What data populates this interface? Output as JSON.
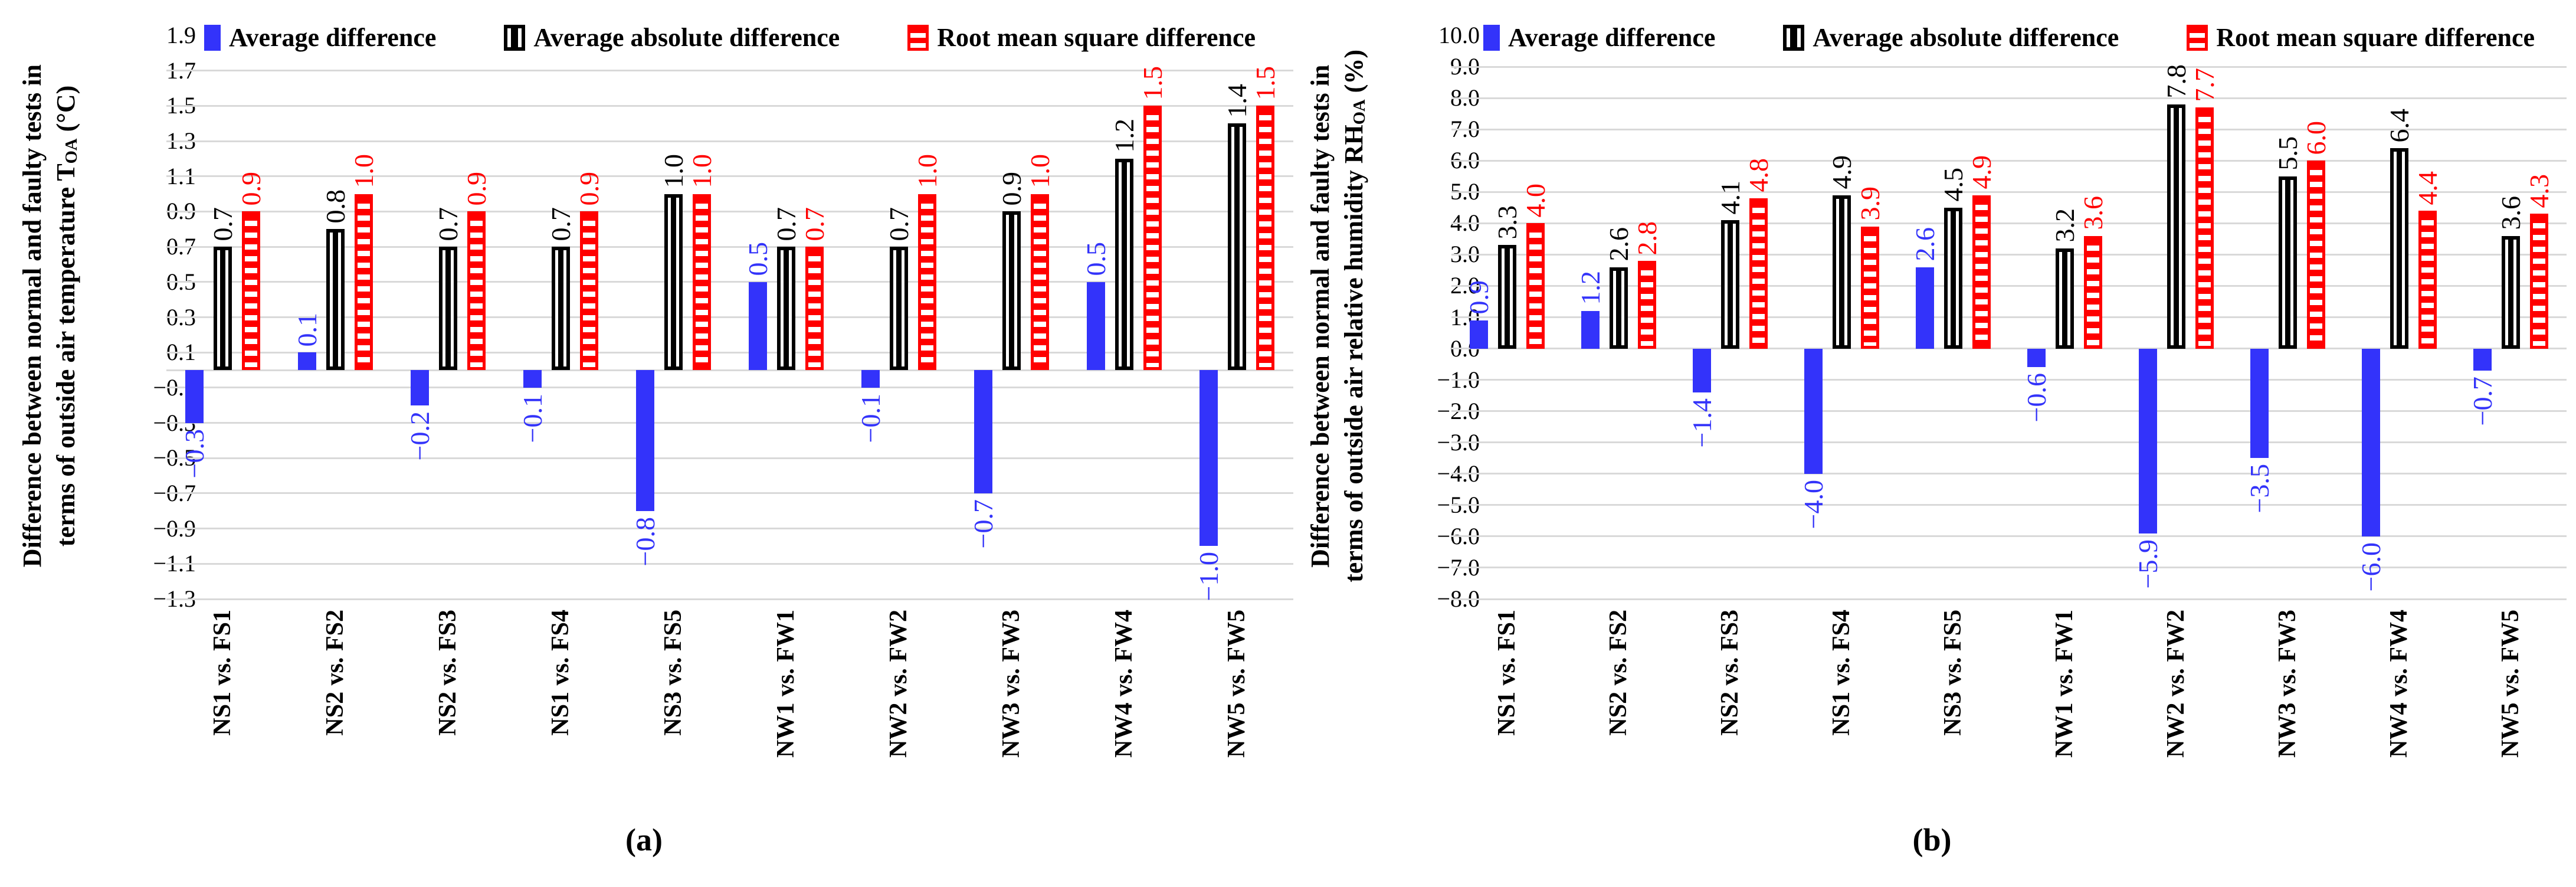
{
  "colors": {
    "average_difference": "#3333FA",
    "average_absolute_difference": "#000000",
    "root_mean_square_difference": "#FF0000",
    "gridline": "#D9D9D9",
    "background": "#FFFFFF"
  },
  "chart_data": [
    {
      "type": "bar",
      "caption": "(a)",
      "ylabel": "Difference between  normal and faulty tests in terms of outside air temperature TOA (°C)",
      "ylabel_parts": {
        "line1": "Difference between  normal and faulty tests in",
        "line2_pre": "terms of outside air temperature T",
        "line2_sub": "OA",
        "line2_post": " (°C)"
      },
      "ylim": [
        -1.3,
        1.9
      ],
      "ytick_step": 0.2,
      "ytick_decimals": 1,
      "grid": true,
      "legend_position": "top",
      "categories": [
        "NS1 vs. FS1",
        "NS2 vs. FS2",
        "NS2 vs. FS3",
        "NS1 vs. FS4",
        "NS3 vs. FS5",
        "NW1 vs. FW1",
        "NW2 vs. FW2",
        "NW3 vs. FW3",
        "NW4 vs. FW4",
        "NW5 vs. FW5"
      ],
      "series": [
        {
          "name": "Average difference",
          "style": {
            "fill": "#3333FA",
            "pattern": "solid"
          },
          "values": [
            -0.3,
            0.1,
            -0.2,
            -0.1,
            -0.8,
            0.5,
            -0.1,
            -0.7,
            0.5,
            -1.0
          ]
        },
        {
          "name": "Average absolute difference",
          "style": {
            "color": "#000000",
            "pattern": "vertical-stripes"
          },
          "values": [
            0.7,
            0.8,
            0.7,
            0.7,
            1.0,
            0.7,
            0.7,
            0.9,
            1.2,
            1.4
          ]
        },
        {
          "name": "Root mean square difference",
          "style": {
            "color": "#FF0000",
            "pattern": "horizontal-stripes"
          },
          "values": [
            0.9,
            1.0,
            0.9,
            0.9,
            1.0,
            0.7,
            1.0,
            1.0,
            1.5,
            1.5
          ]
        }
      ]
    },
    {
      "type": "bar",
      "caption": "(b)",
      "ylabel": "Difference between  normal and faulty tests in terms of outside air relative humidity RHOA (%)",
      "ylabel_parts": {
        "line1": "Difference between  normal and faulty tests in",
        "line2_pre": "terms of outside air relative humidity RH",
        "line2_sub": "OA",
        "line2_post": " (%)"
      },
      "ylim": [
        -8.0,
        10.0
      ],
      "ytick_step": 1.0,
      "ytick_decimals": 1,
      "grid": true,
      "legend_position": "top",
      "categories": [
        "NS1 vs. FS1",
        "NS2 vs. FS2",
        "NS2 vs. FS3",
        "NS1 vs. FS4",
        "NS3 vs. FS5",
        "NW1 vs. FW1",
        "NW2 vs. FW2",
        "NW3 vs. FW3",
        "NW4 vs. FW4",
        "NW5 vs. FW5"
      ],
      "series": [
        {
          "name": "Average difference",
          "style": {
            "fill": "#3333FA",
            "pattern": "solid"
          },
          "values": [
            0.9,
            1.2,
            -1.4,
            -4.0,
            2.6,
            -0.6,
            -5.9,
            -3.5,
            -6.0,
            -0.7
          ]
        },
        {
          "name": "Average absolute difference",
          "style": {
            "color": "#000000",
            "pattern": "vertical-stripes"
          },
          "values": [
            3.3,
            2.6,
            4.1,
            4.9,
            4.5,
            3.2,
            7.8,
            5.5,
            6.4,
            3.6
          ]
        },
        {
          "name": "Root mean square difference",
          "style": {
            "color": "#FF0000",
            "pattern": "horizontal-stripes"
          },
          "values": [
            4.0,
            2.8,
            4.8,
            3.9,
            4.9,
            3.6,
            7.7,
            6.0,
            4.4,
            4.3
          ]
        }
      ]
    }
  ]
}
